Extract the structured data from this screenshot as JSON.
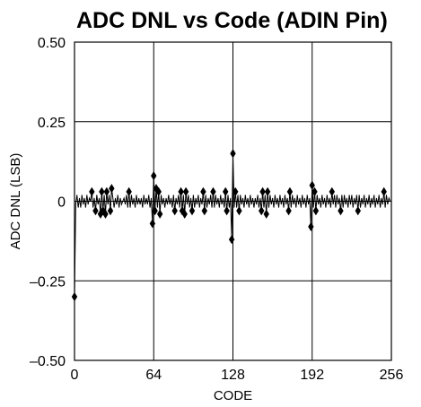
{
  "chart_data": {
    "type": "line",
    "title": "ADC DNL vs Code (ADIN Pin)",
    "xlabel": "CODE",
    "ylabel": "ADC DNL (LSB)",
    "xlim": [
      0,
      256
    ],
    "ylim": [
      -0.5,
      0.5
    ],
    "x_ticks": [
      0,
      64,
      128,
      192,
      256
    ],
    "x_tick_labels": [
      "0",
      "64",
      "128",
      "192",
      "256"
    ],
    "y_ticks": [
      0.5,
      0.25,
      0,
      -0.25,
      -0.5
    ],
    "y_tick_labels": [
      "0.50",
      "0.25",
      "0",
      "–0.25",
      "–0.50"
    ],
    "grid": true,
    "colors": {
      "line": "#000000",
      "grid": "#000000",
      "background": "#ffffff"
    },
    "series": [
      {
        "values": [
          -0.3,
          -0.01,
          0.02,
          -0.02,
          0.01,
          -0.02,
          0.02,
          -0.01,
          0.01,
          -0.02,
          0.02,
          -0.01,
          0.01,
          0.0,
          0.03,
          -0.02,
          0.01,
          -0.03,
          0.02,
          -0.01,
          0.01,
          -0.04,
          0.03,
          -0.03,
          0.02,
          -0.04,
          0.03,
          -0.01,
          0.02,
          -0.03,
          0.04,
          0.01,
          -0.02,
          0.01,
          -0.01,
          0.02,
          -0.02,
          0.01,
          -0.01,
          0.0,
          0.01,
          -0.01,
          0.02,
          -0.02,
          0.03,
          -0.02,
          0.02,
          -0.01,
          0.01,
          -0.02,
          0.02,
          -0.01,
          0.01,
          -0.01,
          0.01,
          -0.02,
          0.02,
          -0.01,
          0.01,
          -0.01,
          0.02,
          -0.02,
          0.01,
          -0.07,
          0.08,
          -0.03,
          0.04,
          -0.02,
          0.03,
          -0.04,
          0.02,
          -0.01,
          0.01,
          -0.02,
          0.01,
          -0.01,
          0.02,
          -0.01,
          0.01,
          -0.02,
          0.02,
          -0.03,
          0.01,
          -0.01,
          0.02,
          -0.02,
          0.03,
          -0.03,
          0.02,
          -0.04,
          0.03,
          -0.01,
          0.02,
          -0.02,
          0.01,
          -0.03,
          0.02,
          -0.02,
          0.01,
          -0.01,
          0.02,
          -0.02,
          0.01,
          -0.01,
          0.03,
          -0.03,
          0.02,
          -0.02,
          0.01,
          -0.01,
          0.02,
          -0.02,
          0.03,
          -0.02,
          0.02,
          -0.01,
          0.01,
          -0.02,
          0.02,
          -0.01,
          0.01,
          -0.02,
          0.03,
          -0.03,
          0.02,
          -0.02,
          0.01,
          -0.12,
          0.15,
          -0.02,
          0.03,
          -0.02,
          0.02,
          -0.03,
          0.02,
          -0.01,
          0.01,
          -0.02,
          0.02,
          -0.01,
          0.01,
          -0.02,
          0.02,
          -0.01,
          0.01,
          -0.02,
          0.01,
          -0.01,
          0.02,
          -0.02,
          0.01,
          -0.03,
          0.03,
          -0.02,
          0.02,
          -0.04,
          0.03,
          -0.02,
          0.02,
          -0.01,
          0.01,
          -0.02,
          0.02,
          -0.01,
          0.01,
          -0.02,
          0.02,
          -0.01,
          0.01,
          -0.02,
          0.02,
          -0.01,
          0.01,
          -0.03,
          0.03,
          -0.02,
          0.02,
          -0.01,
          0.01,
          -0.02,
          0.02,
          -0.01,
          0.01,
          -0.02,
          0.02,
          -0.01,
          0.01,
          -0.02,
          0.02,
          -0.01,
          0.01,
          -0.08,
          0.05,
          -0.02,
          0.03,
          -0.03,
          0.02,
          -0.01,
          0.01,
          -0.02,
          0.02,
          -0.01,
          0.01,
          -0.02,
          0.02,
          -0.01,
          0.01,
          -0.02,
          0.03,
          -0.01,
          0.02,
          -0.02,
          0.02,
          -0.01,
          0.01,
          -0.03,
          0.02,
          -0.02,
          0.02,
          -0.01,
          0.01,
          -0.02,
          0.02,
          -0.01,
          0.02,
          -0.02,
          0.01,
          -0.01,
          0.02,
          -0.03,
          0.02,
          -0.02,
          0.01,
          -0.01,
          0.02,
          -0.02,
          0.01,
          -0.01,
          0.02,
          -0.02,
          0.01,
          -0.01,
          0.02,
          -0.02,
          0.01,
          -0.01,
          0.02,
          -0.02,
          0.01,
          -0.01,
          0.03,
          -0.02,
          0.02,
          -0.01,
          0.01,
          0.0
        ]
      }
    ]
  }
}
